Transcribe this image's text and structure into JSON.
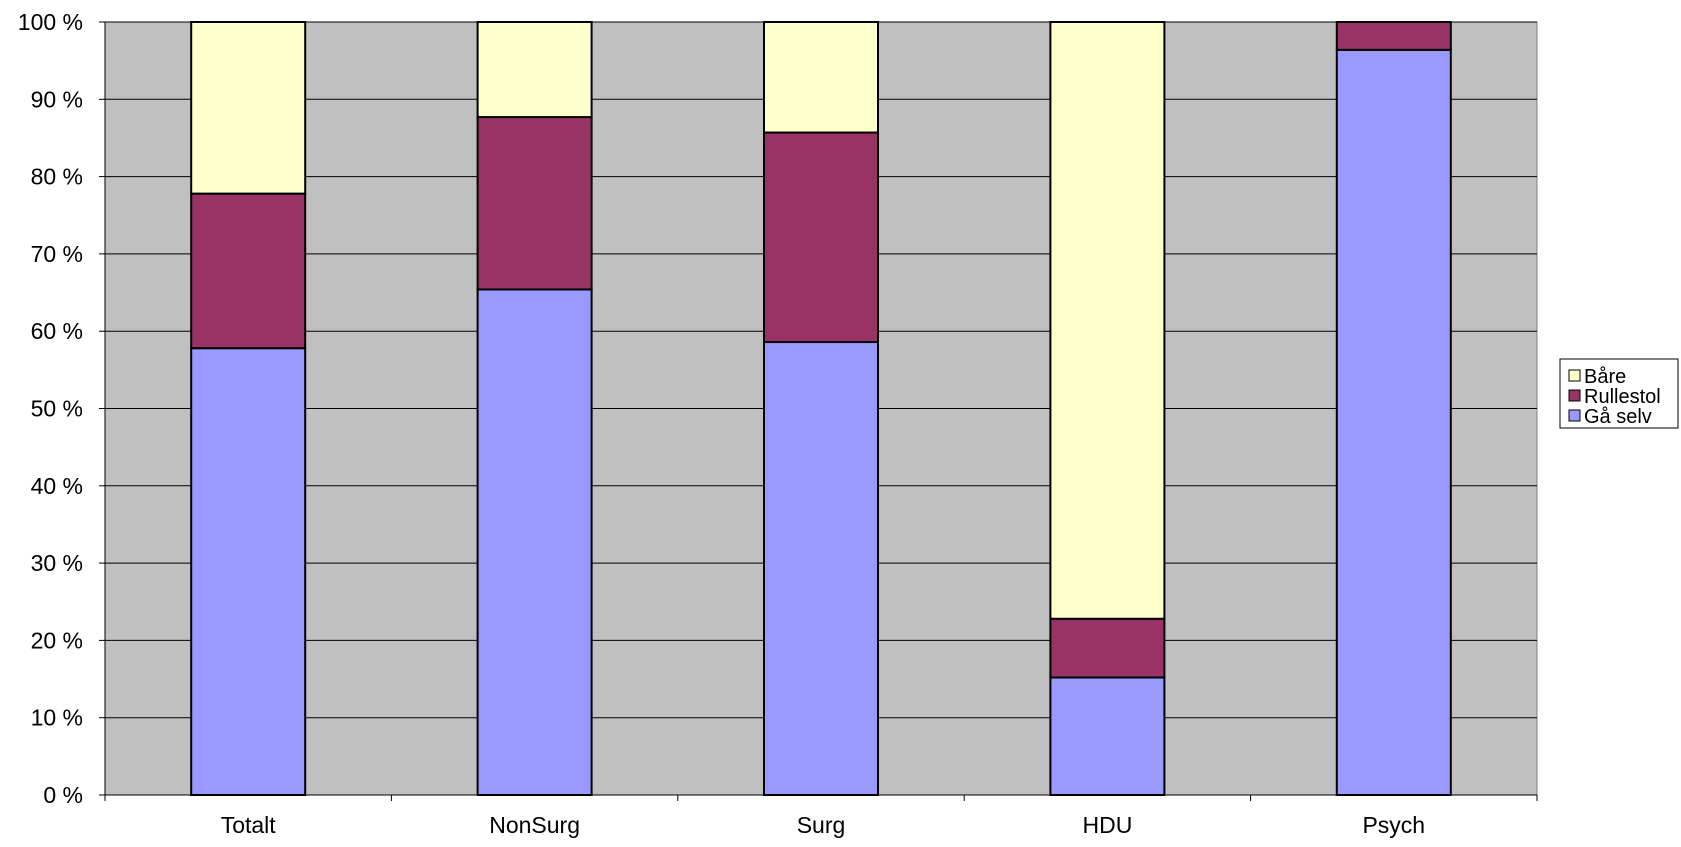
{
  "chart_data": {
    "type": "bar",
    "stacked": "percent",
    "categories": [
      "Totalt",
      "NonSurg",
      "Surg",
      "HDU",
      "Psych"
    ],
    "series": [
      {
        "name": "Gå selv",
        "color": "#9999ff",
        "values": [
          57.8,
          65.4,
          58.6,
          15.2,
          96.4
        ]
      },
      {
        "name": "Rullestol",
        "color": "#993366",
        "values": [
          20.0,
          22.3,
          27.1,
          7.6,
          3.6
        ]
      },
      {
        "name": "Båre",
        "color": "#ffffcc",
        "values": [
          22.2,
          12.3,
          14.3,
          77.2,
          0.0
        ]
      }
    ],
    "ylim": [
      0,
      100
    ],
    "yticks": [
      0,
      10,
      20,
      30,
      40,
      50,
      60,
      70,
      80,
      90,
      100
    ],
    "ytick_labels": [
      "0 %",
      "10 %",
      "20 %",
      "30 %",
      "40 %",
      "50 %",
      "60 %",
      "70 %",
      "80 %",
      "90 %",
      "100 %"
    ],
    "legend": {
      "placement": "right",
      "order": [
        "Båre",
        "Rullestol",
        "Gå selv"
      ]
    },
    "grid": true,
    "plot_background": "#c0c0c0",
    "title": "",
    "xlabel": "",
    "ylabel": ""
  }
}
